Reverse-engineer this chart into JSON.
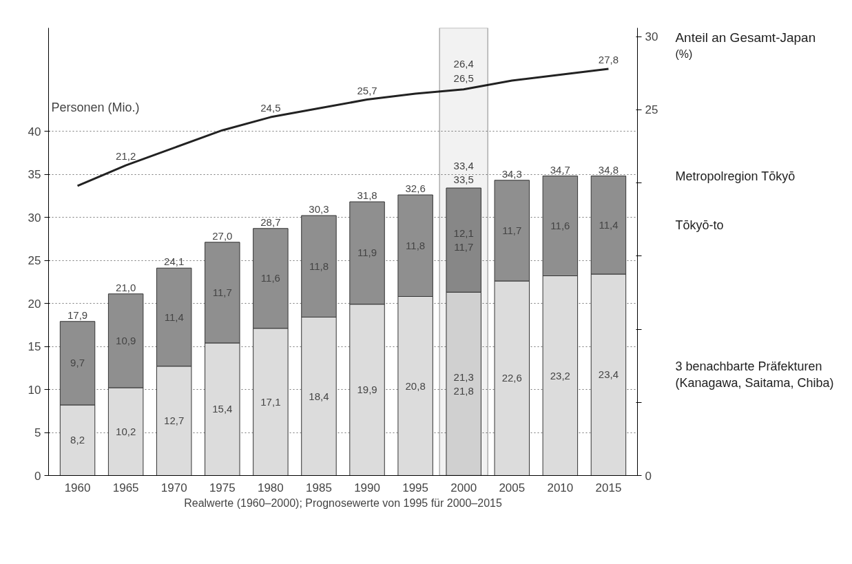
{
  "chart_data": {
    "type": "bar",
    "stacked": true,
    "categories": [
      "1960",
      "1965",
      "1970",
      "1975",
      "1980",
      "1985",
      "1990",
      "1995",
      "2000",
      "2005",
      "2010",
      "2015"
    ],
    "ylabel": "Personen (Mio.)",
    "y2label": "(%)",
    "xlabel": "Realwerte (1960–2000); Prognosewerte von 1995 für 2000–2015",
    "ylim": [
      0,
      52
    ],
    "yticks": [
      0,
      5,
      10,
      15,
      20,
      25,
      30,
      35,
      40
    ],
    "y2lim": [
      0,
      30.6
    ],
    "y2ticks": [
      0,
      {
        "value": 5,
        "label": null
      },
      {
        "value": 10,
        "label": null
      },
      {
        "value": 15,
        "label": null
      },
      {
        "value": 20,
        "label": null
      },
      25,
      30
    ],
    "grid": "y",
    "series": [
      {
        "name": "3 benachbarte Präfekturen (Kanagawa, Saitama, Chiba)",
        "color": "#dcdcdc",
        "values": [
          8.2,
          10.2,
          12.7,
          15.4,
          17.1,
          18.4,
          19.9,
          20.8,
          21.3,
          22.6,
          23.2,
          23.4
        ],
        "value_labels": [
          "8,2",
          "10,2",
          "12,7",
          "15,4",
          "17,1",
          "18,4",
          "19,9",
          "20,8",
          "21,3\n21,8",
          "22,6",
          "23,2",
          "23,4"
        ]
      },
      {
        "name": "Tōkyō-to",
        "color": "#8f8f8f",
        "values": [
          9.7,
          10.9,
          11.4,
          11.7,
          11.6,
          11.8,
          11.9,
          11.8,
          12.1,
          11.7,
          11.6,
          11.4
        ],
        "value_labels": [
          "9,7",
          "10,9",
          "11,4",
          "11,7",
          "11,6",
          "11,8",
          "11,9",
          "11,8",
          "12,1\n11,7",
          "11,7",
          "11,6",
          "11,4"
        ]
      },
      {
        "name": "Anteil an Gesamt-Japan",
        "type": "line",
        "axis": "y2",
        "color": "#222222",
        "values": [
          19.8,
          21.2,
          22.4,
          23.6,
          24.5,
          25.1,
          25.7,
          26.1,
          26.4,
          27.0,
          27.4,
          27.8
        ],
        "value_labels": [
          null,
          "21,2",
          null,
          null,
          "24,5",
          null,
          "25,7",
          null,
          "26,4\n26,5",
          null,
          null,
          "27,8"
        ]
      }
    ],
    "totals": [
      "17,9",
      "21,0",
      "24,1",
      "27,0",
      "28,7",
      "30,3",
      "31,8",
      "32,6",
      "33,4\n33,5",
      "34,3",
      "34,7",
      "34,8"
    ],
    "annotations": [
      "Metropolregion Tōkyō"
    ],
    "bands": [
      {
        "axis": "x",
        "from": "2000",
        "to": "2000",
        "color": "#000000"
      }
    ]
  }
}
